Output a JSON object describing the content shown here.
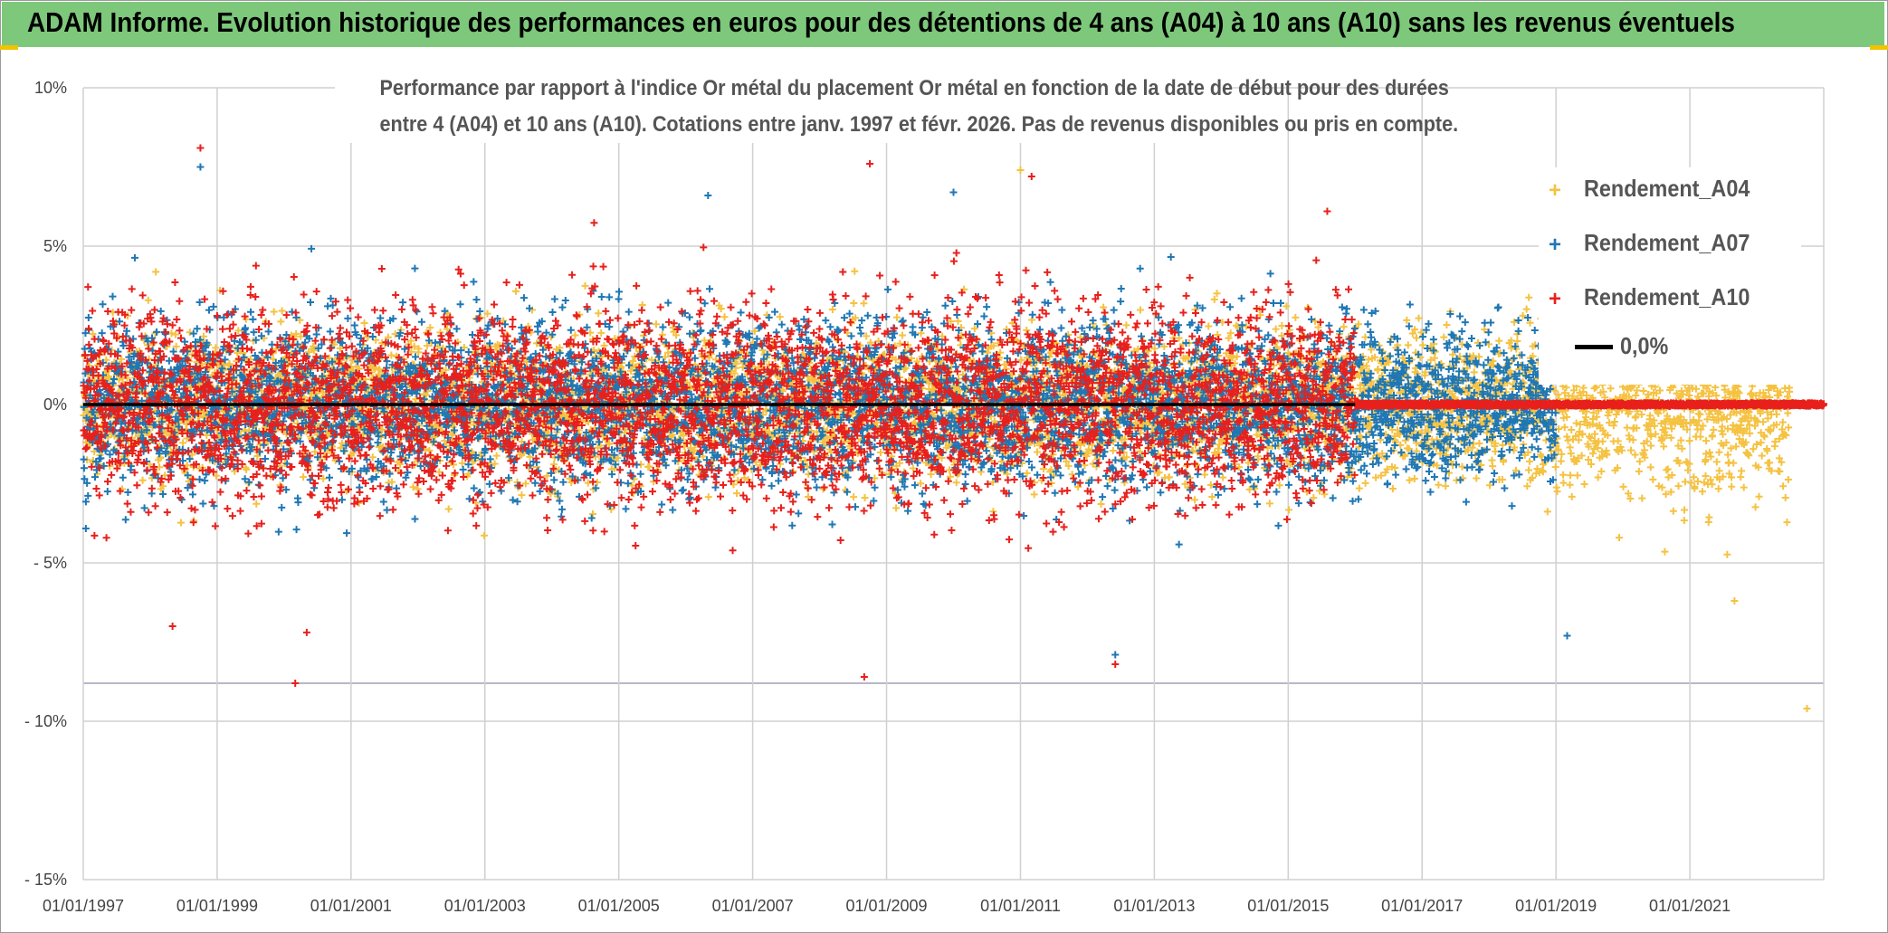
{
  "header": {
    "title": "ADAM Informe. Evolution historique des performances en euros pour des détentions de 4 ans (A04) à 10 ans (A10) sans les revenus éventuels"
  },
  "colors": {
    "header_bg": "#7dc87b",
    "corner_accent": "#f2c300",
    "A04": "#f5c242",
    "A07": "#1f77b4",
    "A10": "#e8201c",
    "zero_line": "#000000",
    "grid": "#d0d0d0"
  },
  "chart_data": {
    "type": "scatter",
    "title_lines": [
      "Performance par rapport à l'indice Or métal  du placement Or métal en fonction de la date de début pour des durées",
      "entre 4 (A04) et 10 ans (A10). Cotations entre janv. 1997 et févr. 2026. Pas de revenus disponibles ou pris en compte."
    ],
    "xlabel": "",
    "ylabel": "",
    "x_range": [
      "01/01/1997",
      "01/01/2023"
    ],
    "ylim": [
      -0.15,
      0.1
    ],
    "y_ticks": [
      {
        "value": 0.1,
        "label": "10%"
      },
      {
        "value": 0.05,
        "label": "5%"
      },
      {
        "value": 0.0,
        "label": "0%"
      },
      {
        "value": -0.05,
        "label": "- 5%"
      },
      {
        "value": -0.1,
        "label": "- 10%"
      },
      {
        "value": -0.15,
        "label": "- 15%"
      }
    ],
    "x_ticks": [
      "01/01/1997",
      "01/01/1999",
      "01/01/2001",
      "01/01/2003",
      "01/01/2005",
      "01/01/2007",
      "01/01/2009",
      "01/01/2011",
      "01/01/2013",
      "01/01/2015",
      "01/01/2017",
      "01/01/2019",
      "01/01/2021"
    ],
    "grid": true,
    "extra_hline": -0.088,
    "legend_position": "right",
    "marker": "+",
    "series": [
      {
        "name": "Rendement_A04",
        "key": "A04",
        "x_start": "01/01/1997",
        "x_end": "01/07/2022",
        "x_flat_from": "01/07/2022",
        "spread_scale": 0.011,
        "spread_late": 0.014
      },
      {
        "name": "Rendement_A07",
        "key": "A07",
        "x_start": "01/01/1997",
        "x_end": "01/01/2019",
        "x_flat_from": "01/01/2019",
        "spread_scale": 0.013,
        "spread_late": 0.011
      },
      {
        "name": "Rendement_A10",
        "key": "A10",
        "x_start": "01/01/1997",
        "x_end": "01/01/2016",
        "x_flat_from": "01/01/2016",
        "spread_scale": 0.015,
        "spread_late": 0.0
      }
    ],
    "reference_line": {
      "name": "0,0%",
      "y": 0.0,
      "x_start": "01/01/1997",
      "x_end": "01/01/2016"
    },
    "notable_points": [
      {
        "series": "A10",
        "x": "01/10/1998",
        "y": 0.081
      },
      {
        "series": "A07",
        "x": "01/10/1998",
        "y": 0.075
      },
      {
        "series": "A10",
        "x": "01/10/2008",
        "y": 0.076
      },
      {
        "series": "A10",
        "x": "01/03/2011",
        "y": 0.072
      },
      {
        "series": "A10",
        "x": "01/03/2000",
        "y": -0.088
      },
      {
        "series": "A10",
        "x": "01/09/2008",
        "y": -0.086
      },
      {
        "series": "A07",
        "x": "01/06/2012",
        "y": -0.079
      },
      {
        "series": "A10",
        "x": "01/06/2012",
        "y": -0.082
      },
      {
        "series": "A04",
        "x": "01/10/2022",
        "y": -0.096
      },
      {
        "series": "A07",
        "x": "01/03/2019",
        "y": -0.073
      },
      {
        "series": "A04",
        "x": "01/09/2021",
        "y": -0.062
      },
      {
        "series": "A10",
        "x": "01/08/2015",
        "y": 0.061
      },
      {
        "series": "A04",
        "x": "01/01/2011",
        "y": 0.074
      },
      {
        "series": "A07",
        "x": "01/05/2006",
        "y": 0.066
      },
      {
        "series": "A07",
        "x": "01/01/2010",
        "y": 0.067
      },
      {
        "series": "A10",
        "x": "01/05/1998",
        "y": -0.07
      }
    ]
  },
  "legend": {
    "items": [
      {
        "label": "Rendement_A04",
        "key": "A04"
      },
      {
        "label": "Rendement_A07",
        "key": "A07"
      },
      {
        "label": "Rendement_A10",
        "key": "A10"
      },
      {
        "label": "0,0%",
        "key": "zero"
      }
    ]
  }
}
